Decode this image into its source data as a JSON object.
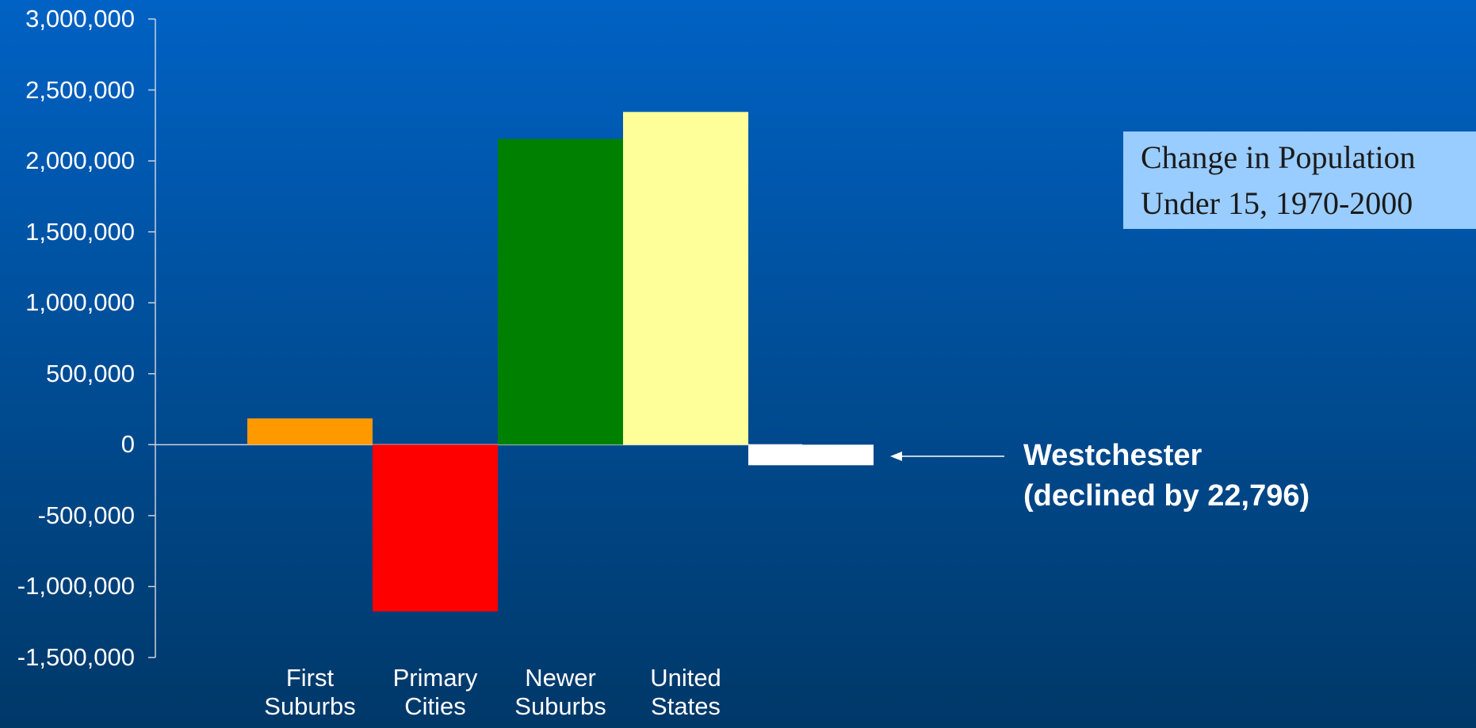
{
  "chart_data": {
    "type": "bar",
    "title": "Change in Population Under 15, 1970-2000",
    "categories": [
      "First Suburbs",
      "Primary Cities",
      "Newer Suburbs",
      "United States",
      null
    ],
    "values": [
      185000,
      -1175000,
      2155000,
      2345000,
      -145000
    ],
    "colors": [
      "#ff9900",
      "#ff0000",
      "#008000",
      "#ffff99",
      "#ffffff"
    ],
    "ylim": [
      -1500000,
      3000000
    ],
    "yticks": [
      {
        "value": -1500000,
        "label": "-1,500,000"
      },
      {
        "value": -1000000,
        "label": "-1,000,000"
      },
      {
        "value": -500000,
        "label": "-500,000"
      },
      0,
      {
        "value": 500000,
        "label": "500,000"
      },
      {
        "value": 1000000,
        "label": "1,000,000"
      },
      {
        "value": 1500000,
        "label": "1,500,000"
      },
      {
        "value": 2000000,
        "label": "2,000,000"
      },
      {
        "value": 2500000,
        "label": "2,500,000"
      },
      {
        "value": 3000000,
        "label": "3,000,000"
      }
    ],
    "annotations": [
      "Westchester",
      "(declined by 22,796)"
    ]
  }
}
